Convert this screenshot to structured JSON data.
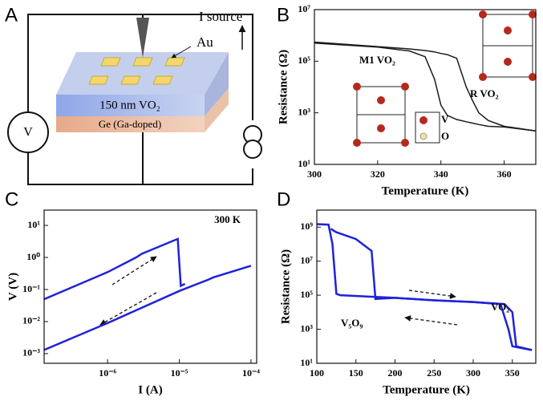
{
  "diagram": {
    "panel": "A",
    "electrode_label": "Au",
    "film_label": "150 nm VO₂",
    "substrate_label": "Ge (Ga-doped)",
    "meter_label": "V",
    "source_label": "I source"
  },
  "chart_data": [
    {
      "type": "line",
      "panel": "B",
      "xlabel": "Temperature (K)",
      "ylabel": "Resistance (Ω)",
      "log_y": true,
      "xlim": [
        300,
        370
      ],
      "xticks": [
        300,
        320,
        340,
        360
      ],
      "ylim": [
        10,
        10000000
      ],
      "yticks": [
        {
          "value": 10,
          "label": "10¹"
        },
        {
          "value": 1000,
          "label": "10³"
        },
        {
          "value": 100000,
          "label": "10⁵"
        },
        {
          "value": 10000000,
          "label": "10⁷"
        }
      ],
      "x": [
        300,
        320,
        330,
        335,
        338,
        340,
        342,
        345,
        348,
        350,
        352,
        355,
        360,
        370
      ],
      "series": [
        {
          "color": "#1a1a1a",
          "values": [
            500000,
            350000,
            250000,
            150000,
            20000,
            2000,
            800,
            550,
            450,
            400,
            350,
            300,
            280,
            200
          ]
        },
        {
          "color": "#1a1a1a",
          "values": [
            550000,
            370000,
            300000,
            260000,
            230000,
            200000,
            180000,
            130000,
            10000,
            3000,
            1000,
            500,
            300,
            200
          ]
        }
      ],
      "annotations": [
        "M1 VO₂",
        "R VO₂",
        "V",
        "O"
      ]
    },
    {
      "type": "line",
      "panel": "C",
      "xlabel": "I (A)",
      "ylabel": "V (V)",
      "log_x": true,
      "log_y": true,
      "xlim": [
        1.3e-07,
        0.00012
      ],
      "xticks": [
        {
          "value": 1e-06,
          "label": "10⁻⁶"
        },
        {
          "value": 1e-05,
          "label": "10⁻⁵"
        },
        {
          "value": 0.0001,
          "label": "10⁻⁴"
        }
      ],
      "ylim": [
        0.0005,
        30
      ],
      "yticks": [
        {
          "value": 0.001,
          "label": "10⁻³"
        },
        {
          "value": 0.01,
          "label": "10⁻²"
        },
        {
          "value": 0.1,
          "label": "10⁻¹"
        },
        {
          "value": 1,
          "label": "10⁰"
        },
        {
          "value": 10,
          "label": "10¹"
        }
      ],
      "series": [
        {
          "color": "#1f22d8",
          "x": [
            1.3e-07,
            1e-06,
            2.5e-06,
            3e-06,
            9.5e-06,
            1.05e-05,
            1.2e-05
          ],
          "values": [
            0.05,
            0.35,
            1.0,
            1.3,
            3.8,
            0.13,
            0.15
          ]
        },
        {
          "color": "#1f22d8",
          "x": [
            1.3e-07,
            1e-06,
            1e-05,
            2.5e-05,
            3e-05,
            0.0001
          ],
          "values": [
            0.0013,
            0.009,
            0.09,
            0.2,
            0.24,
            0.55
          ]
        }
      ],
      "annotations": [
        "300 K"
      ]
    },
    {
      "type": "line",
      "panel": "D",
      "xlabel": "Temperature (K)",
      "ylabel": "Resistance (Ω)",
      "log_y": true,
      "xlim": [
        100,
        380
      ],
      "xticks": [
        100,
        150,
        200,
        250,
        300,
        350
      ],
      "ylim": [
        10,
        10000000000
      ],
      "yticks": [
        {
          "value": 10,
          "label": "10¹"
        },
        {
          "value": 1000,
          "label": "10³"
        },
        {
          "value": 100000,
          "label": "10⁵"
        },
        {
          "value": 10000000,
          "label": "10⁷"
        },
        {
          "value": 1000000000,
          "label": "10⁹"
        }
      ],
      "series": [
        {
          "color": "#1f22d8",
          "x": [
            100,
            115,
            120,
            125,
            130,
            175,
            200,
            250,
            300,
            335,
            345,
            350,
            375
          ],
          "values": [
            1500000000,
            1400000000,
            100000000,
            120000,
            100000,
            80000,
            70000,
            50000,
            40000,
            30000,
            1000,
            100,
            60
          ]
        },
        {
          "color": "#1f22d8",
          "x": [
            118,
            122,
            125,
            150,
            170,
            175,
            200,
            250,
            300,
            340,
            350,
            355,
            375
          ],
          "values": [
            800000000,
            600000000,
            500000000,
            200000000,
            40000000,
            60000,
            70000,
            50000,
            40000,
            30000,
            10000,
            100,
            60
          ]
        }
      ],
      "annotations": [
        "VO₂",
        "V₅O₉"
      ]
    }
  ]
}
